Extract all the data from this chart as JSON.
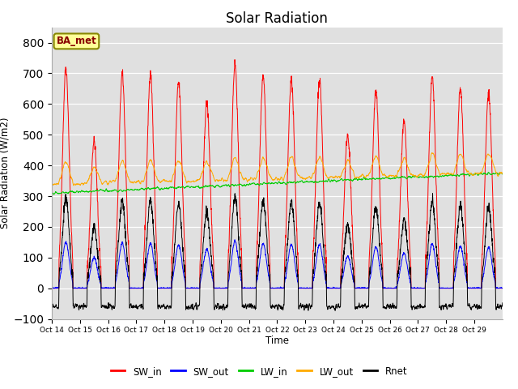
{
  "title": "Solar Radiation",
  "ylabel": "Solar Radiation (W/m2)",
  "xlabel": "Time",
  "ylim": [
    -100,
    850
  ],
  "yticks": [
    -100,
    0,
    100,
    200,
    300,
    400,
    500,
    600,
    700,
    800
  ],
  "series_colors": {
    "SW_in": "#ff0000",
    "SW_out": "#0000ff",
    "LW_in": "#00cc00",
    "LW_out": "#ffaa00",
    "Rnet": "#000000"
  },
  "legend_label": "BA_met",
  "legend_bbox_facecolor": "#ffff99",
  "legend_bbox_edgecolor": "#888800",
  "n_days": 16,
  "pts_per_day": 144,
  "background_color": "#e0e0e0",
  "title_fontsize": 12,
  "tick_labels": [
    "Oct 14",
    "Oct 15",
    "Oct 16",
    "Oct 17",
    "Oct 18",
    "Oct 19",
    "Oct 20",
    "Oct 21",
    "Oct 22",
    "Oct 23",
    "Oct 24",
    "Oct 25",
    "Oct 26",
    "Oct 27",
    "Oct 28",
    "Oct 29"
  ],
  "peak_heights_SW": [
    715,
    480,
    695,
    695,
    670,
    605,
    730,
    695,
    680,
    680,
    500,
    640,
    540,
    685,
    650,
    635
  ]
}
